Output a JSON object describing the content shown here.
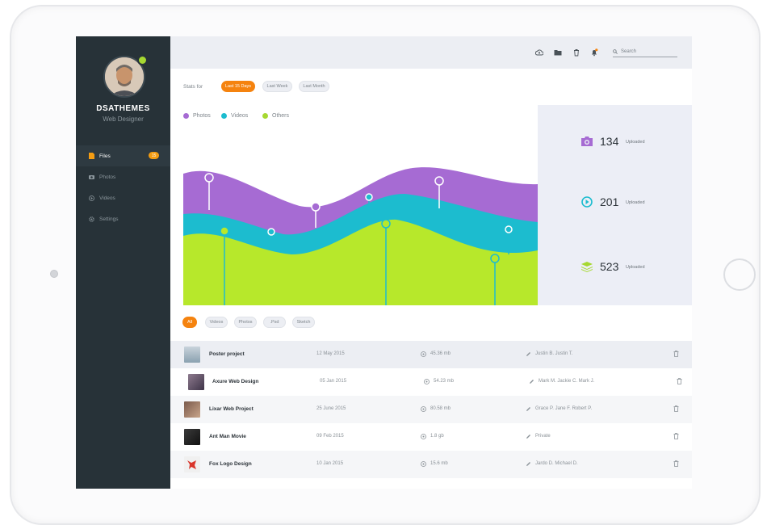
{
  "user": {
    "name": "DSATHEMES",
    "role": "Web Designer"
  },
  "nav": [
    {
      "label": "Files",
      "icon": "file-icon",
      "badge": "15",
      "active": true
    },
    {
      "label": "Photos",
      "icon": "camera-icon",
      "active": false
    },
    {
      "label": "Videos",
      "icon": "play-icon",
      "active": false
    },
    {
      "label": "Settings",
      "icon": "gear-icon",
      "active": false
    }
  ],
  "topbar": {
    "search_placeholder": "Search",
    "icons": [
      "cloud-upload-icon",
      "folder-icon",
      "trash-icon",
      "bell-icon"
    ]
  },
  "stats": {
    "label": "Stats for",
    "ranges": [
      {
        "label": "Last 15 Days",
        "active": true
      },
      {
        "label": "Last Week",
        "active": false
      },
      {
        "label": "Last Month",
        "active": false
      }
    ]
  },
  "legend": [
    {
      "label": "Photos",
      "color": "#a66bd3"
    },
    {
      "label": "Videos",
      "color": "#1cbccf"
    },
    {
      "label": "Others",
      "color": "#a6d831"
    }
  ],
  "summary": [
    {
      "value": "134",
      "label": "Uploaded",
      "icon": "camera-icon",
      "color": "#a66bd3"
    },
    {
      "value": "201",
      "label": "Uploaded",
      "icon": "play-icon",
      "color": "#1cbccf"
    },
    {
      "value": "523",
      "label": "Uploaded",
      "icon": "layers-icon",
      "color": "#a6d831"
    }
  ],
  "filters": [
    {
      "label": "All",
      "active": true
    },
    {
      "label": "Videos",
      "active": false
    },
    {
      "label": "Photos",
      "active": false
    },
    {
      "label": ".Psd",
      "active": false
    },
    {
      "label": "Sketch",
      "active": false
    }
  ],
  "files": [
    {
      "name": "Poster project",
      "date": "12 May 2015",
      "size": "45.36 mb",
      "people": "Justin B. Justin T."
    },
    {
      "name": "Axure Web Design",
      "date": "05 Jan 2015",
      "size": "54.23 mb",
      "people": "Mark M. Jackie C. Mark J."
    },
    {
      "name": "Lixar Web Project",
      "date": "25 June 2015",
      "size": "80.58 mb",
      "people": "Grace P. Jane F. Robert P."
    },
    {
      "name": "Ant Man Movie",
      "date": "09 Feb 2015",
      "size": "1.8 gb",
      "people": "Private"
    },
    {
      "name": "Fox Logo Design",
      "date": "10 Jan 2015",
      "size": "15.6 mb",
      "people": "Jardo D. Michael D."
    }
  ]
}
